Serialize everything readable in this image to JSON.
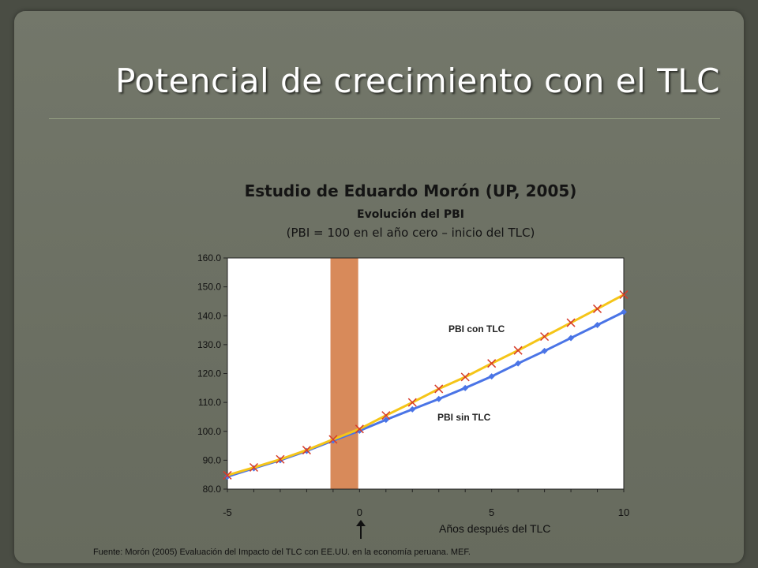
{
  "slide": {
    "title": "Potencial de crecimiento con el TLC"
  },
  "chart_heading": {
    "title": "Estudio de Eduardo Morón (UP, 2005)",
    "subtitle": "Evolución del PBI",
    "note": "(PBI = 100 en el año cero – inicio del TLC)"
  },
  "source": "Fuente: Morón (2005) Evaluación del Impacto del TLC con EE.UU. en la economía peruana. MEF.",
  "chart_data": {
    "type": "line",
    "title": "Estudio de Eduardo Morón (UP, 2005)",
    "xlabel": "Años después del TLC",
    "ylabel": "",
    "xlim": [
      -5,
      10
    ],
    "ylim": [
      80,
      160
    ],
    "yticks": [
      "80.0",
      "90.0",
      "100.0",
      "110.0",
      "120.0",
      "130.0",
      "140.0",
      "150.0",
      "160.0"
    ],
    "xticks": [
      "-5",
      "0",
      "5",
      "10"
    ],
    "x": [
      -5,
      -4,
      -3,
      -2,
      -1,
      0,
      1,
      2,
      3,
      4,
      5,
      6,
      7,
      8,
      9,
      10
    ],
    "series": [
      {
        "name": "PBI con TLC",
        "color": "#f5c518",
        "marker": "x",
        "marker_color": "#d63a2a",
        "values": [
          84.8,
          87.5,
          90.3,
          93.5,
          97.2,
          100.8,
          105.5,
          110.0,
          114.7,
          118.8,
          123.5,
          128.0,
          132.8,
          137.6,
          142.4,
          147.3
        ]
      },
      {
        "name": "PBI sin TLC",
        "color": "#4a74e6",
        "marker": "diamond",
        "marker_color": "#4a74e6",
        "values": [
          84.3,
          87.2,
          90.0,
          93.2,
          96.8,
          100.2,
          104.0,
          107.6,
          111.2,
          115.0,
          119.0,
          123.5,
          127.8,
          132.3,
          136.8,
          141.3
        ]
      }
    ],
    "shaded_band": {
      "x_from": -1.1,
      "x_to": -0.05,
      "color": "#d88a5a"
    },
    "reference_line_x": 0,
    "grid": false,
    "arrow_at_x": 0
  }
}
